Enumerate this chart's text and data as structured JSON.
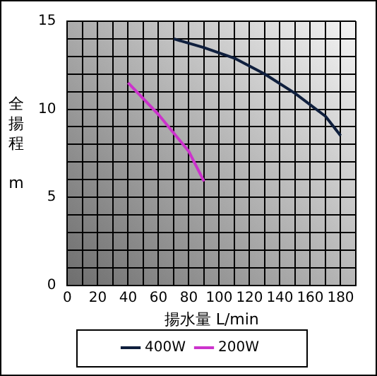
{
  "chart_data": {
    "type": "line",
    "xlabel": "揚水量 L/min",
    "ylabel": "全揚程 m",
    "xlim": [
      0,
      190
    ],
    "ylim": [
      0,
      15
    ],
    "xticks": [
      0,
      {
        "value": 10,
        "label": null
      },
      20,
      {
        "value": 30,
        "label": null
      },
      40,
      {
        "value": 50,
        "label": null
      },
      60,
      {
        "value": 70,
        "label": null
      },
      80,
      {
        "value": 90,
        "label": null
      },
      100,
      {
        "value": 110,
        "label": null
      },
      120,
      {
        "value": 130,
        "label": null
      },
      140,
      {
        "value": 150,
        "label": null
      },
      160,
      {
        "value": 170,
        "label": null
      },
      180,
      {
        "value": 190,
        "label": null
      }
    ],
    "yticks": [
      0,
      {
        "value": 1,
        "label": null
      },
      {
        "value": 2,
        "label": null
      },
      {
        "value": 3,
        "label": null
      },
      {
        "value": 4,
        "label": null
      },
      5,
      {
        "value": 6,
        "label": null
      },
      {
        "value": 7,
        "label": null
      },
      {
        "value": 8,
        "label": null
      },
      {
        "value": 9,
        "label": null
      },
      10,
      {
        "value": 11,
        "label": null
      },
      {
        "value": 12,
        "label": null
      },
      {
        "value": 13,
        "label": null
      },
      {
        "value": 14,
        "label": null
      },
      15
    ],
    "grid": true,
    "legend": "bottom",
    "marker": "none",
    "line_style": "solid",
    "series": [
      {
        "name": "400W",
        "color": "#0f1f3d",
        "x": [
          70,
          90,
          110,
          130,
          150,
          170,
          180
        ],
        "values": [
          14,
          13.5,
          12.9,
          12,
          10.9,
          9.6,
          8.5
        ]
      },
      {
        "name": "200W",
        "color": "#cc33cc",
        "x": [
          40,
          60,
          80,
          90
        ],
        "values": [
          11.5,
          9.7,
          7.6,
          5.9
        ]
      }
    ]
  }
}
